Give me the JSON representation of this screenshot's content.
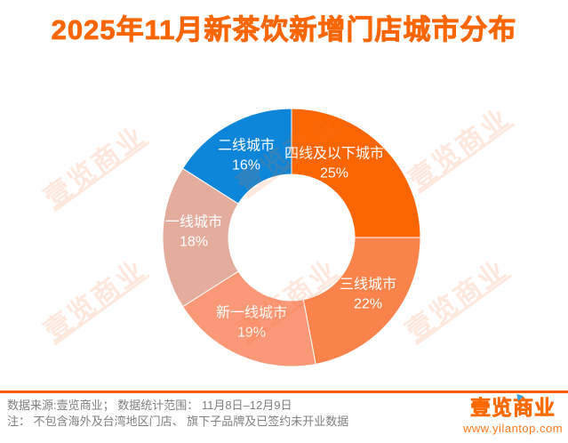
{
  "title": "2025年11月新茶饮新增门店城市分布",
  "title_color": "#FB6604",
  "chart_data": {
    "type": "pie",
    "subtype": "donut",
    "title": "2025年11月新茶饮新增门店城市分布",
    "categories": [
      "四线及以下城市",
      "三线城市",
      "新一线城市",
      "一线城市",
      "二线城市"
    ],
    "values": [
      25,
      22,
      19,
      18,
      16
    ],
    "unit": "%",
    "colors": [
      "#FB6502",
      "#F9834B",
      "#FA9878",
      "#E3AC9C",
      "#0D85D8"
    ],
    "start_angle_deg": 0,
    "direction": "clockwise",
    "labels_inside": "category name + percent, white text",
    "legend_position": "none"
  },
  "watermark": {
    "text": "壹览商业"
  },
  "footer": {
    "source_line": "数据来源:壹览商业； 数据统计范围： 11月8日–12月9日",
    "note_line": "注： 不包含海外及台湾地区门店、 旗下子品牌及已签约未开业数据",
    "divider_color": "#FF5A00"
  },
  "branding": {
    "logo_text": "壹览商业",
    "website": "www.yilantop.com",
    "logo_color": "#FF6A00",
    "accent_color": "#2E9FE6"
  }
}
